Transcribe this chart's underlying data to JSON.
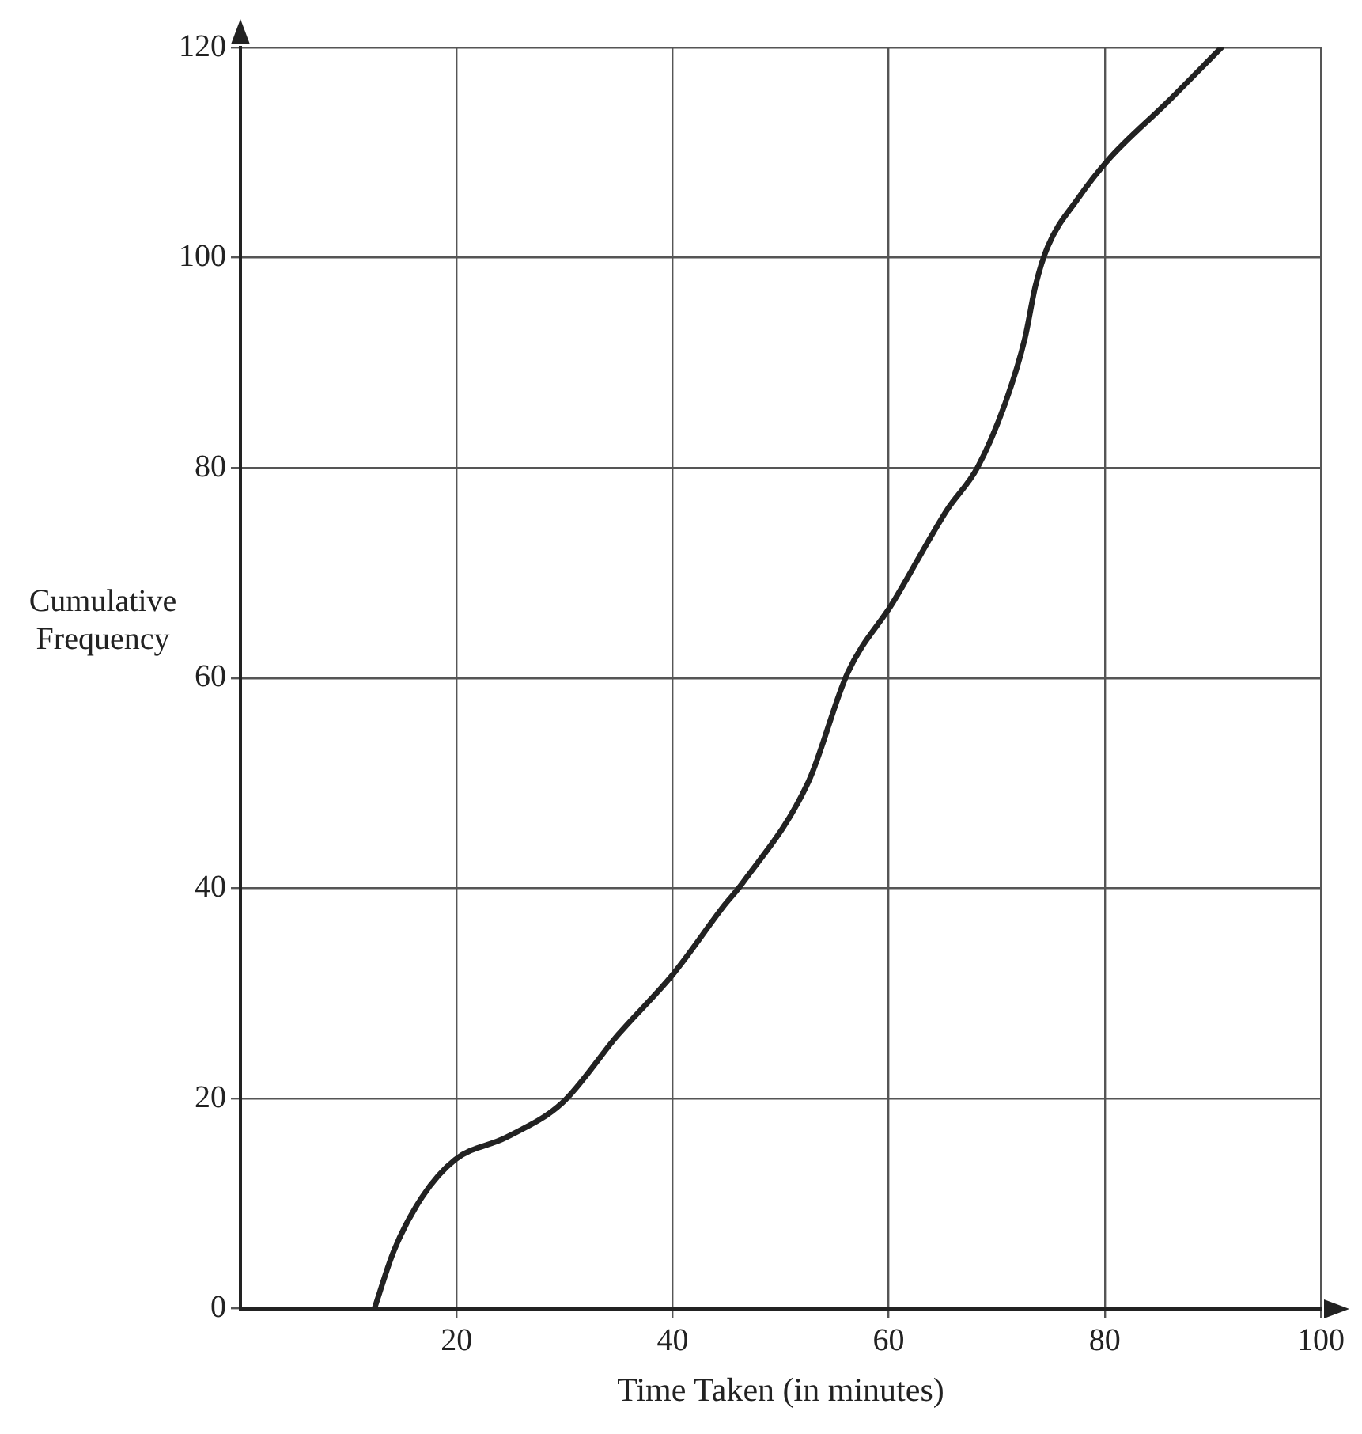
{
  "chart_data": {
    "type": "line",
    "xlabel": "Time Taken (in minutes)",
    "ylabel": "Cumulative Frequency",
    "x": [
      12.4,
      14.2,
      16.8,
      19.9,
      24.6,
      29.8,
      34.9,
      40.1,
      44.8,
      46.4,
      52.6,
      56.2,
      60.4,
      65.4,
      68.2,
      70.8,
      72.6,
      73.6,
      74.7,
      77.5,
      80.4,
      85.8,
      90.8
    ],
    "series": [
      {
        "color": "#222222",
        "values": [
          0,
          5.5,
          10.6,
          14.2,
          16.3,
          19.6,
          26,
          31.9,
          38.4,
          40.4,
          50.2,
          60.5,
          67.2,
          76,
          80,
          86.2,
          92.3,
          97.4,
          101,
          105.6,
          109.4,
          114.8,
          120
        ]
      }
    ],
    "xlim": [
      0,
      100
    ],
    "xticks": [
      20,
      40,
      60,
      80,
      100
    ],
    "ylim": [
      0,
      120
    ],
    "yticks": [
      0,
      20,
      40,
      60,
      80,
      100,
      120
    ],
    "grid": true,
    "marker": "none",
    "line_style": "solid",
    "legend": false
  }
}
